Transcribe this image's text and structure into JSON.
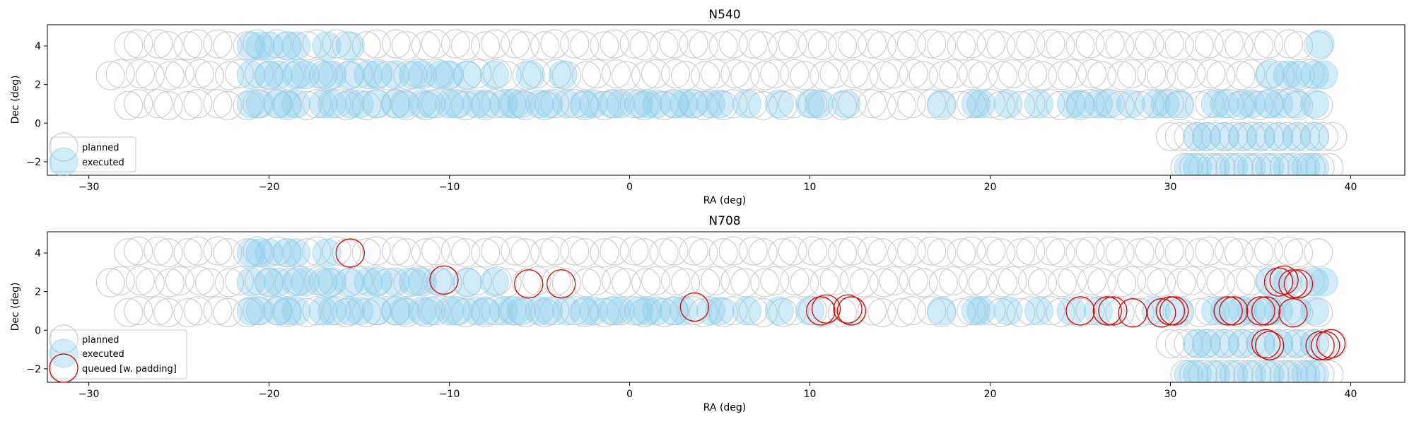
{
  "colors": {
    "planned": "#cccccc",
    "executed_fill": "#87ceeb",
    "queued": "#e00000",
    "axes": "#000000"
  },
  "chart_data": [
    {
      "type": "scatter",
      "title": "N540",
      "xlabel": "RA (deg)",
      "ylabel": "Dec (deg)",
      "xlim": [
        -32.3,
        43
      ],
      "ylim": [
        -2.7,
        5.1
      ],
      "xticks": [
        -30,
        -20,
        -10,
        0,
        10,
        20,
        30,
        40
      ],
      "yticks": [
        -2,
        0,
        2,
        4
      ],
      "grid": false,
      "legend_position": "lower-left",
      "legend": [
        "planned",
        "executed"
      ],
      "series": [
        {
          "name": "planned",
          "style": "open-gray",
          "points": []
        },
        {
          "name": "executed",
          "style": "filled-blue",
          "points": [
            [
              -21.0,
              4.0
            ],
            [
              -20.5,
              4.0
            ],
            [
              -20.0,
              4.0
            ],
            [
              -19.0,
              4.0
            ],
            [
              -18.5,
              4.0
            ],
            [
              -16.8,
              4.0
            ],
            [
              -15.5,
              4.0
            ],
            [
              -21.0,
              2.5
            ],
            [
              -20.0,
              2.5
            ],
            [
              -19.5,
              2.5
            ],
            [
              -18.5,
              2.5
            ],
            [
              -18.0,
              2.5
            ],
            [
              -17.0,
              2.5
            ],
            [
              -16.5,
              2.5
            ],
            [
              -15.5,
              2.5
            ],
            [
              -14.5,
              2.5
            ],
            [
              -14.0,
              2.5
            ],
            [
              -13.0,
              2.5
            ],
            [
              -12.0,
              2.5
            ],
            [
              -11.5,
              2.5
            ],
            [
              -10.5,
              2.5
            ],
            [
              -10.0,
              2.5
            ],
            [
              -9.0,
              2.5
            ],
            [
              -7.5,
              2.5
            ],
            [
              -5.5,
              2.5
            ],
            [
              -3.7,
              2.5
            ],
            [
              -21.0,
              1.0
            ],
            [
              -20.5,
              1.0
            ],
            [
              -19.5,
              1.0
            ],
            [
              -19.0,
              1.0
            ],
            [
              -18.5,
              1.0
            ],
            [
              -17.0,
              1.0
            ],
            [
              -16.5,
              1.0
            ],
            [
              -15.5,
              1.0
            ],
            [
              -15.0,
              1.0
            ],
            [
              -14.0,
              1.0
            ],
            [
              -13.0,
              1.0
            ],
            [
              -12.5,
              1.0
            ],
            [
              -11.5,
              1.0
            ],
            [
              -11.0,
              1.0
            ],
            [
              -10.0,
              1.0
            ],
            [
              -9.5,
              1.0
            ],
            [
              -8.5,
              1.0
            ],
            [
              -8.0,
              1.0
            ],
            [
              -7.0,
              1.0
            ],
            [
              -6.5,
              1.0
            ],
            [
              -6.0,
              1.0
            ],
            [
              -5.0,
              1.0
            ],
            [
              -4.5,
              1.0
            ],
            [
              -3.5,
              1.0
            ],
            [
              -2.5,
              1.0
            ],
            [
              -2.0,
              1.0
            ],
            [
              -1.0,
              1.0
            ],
            [
              -0.5,
              1.0
            ],
            [
              0.5,
              1.0
            ],
            [
              1.0,
              1.0
            ],
            [
              1.5,
              1.0
            ],
            [
              2.5,
              1.0
            ],
            [
              3.0,
              1.0
            ],
            [
              3.5,
              1.0
            ],
            [
              4.5,
              1.0
            ],
            [
              5.0,
              1.0
            ],
            [
              6.5,
              1.0
            ],
            [
              8.3,
              1.0
            ],
            [
              10.0,
              1.0
            ],
            [
              10.5,
              1.0
            ],
            [
              12.0,
              1.0
            ],
            [
              17.3,
              1.0
            ],
            [
              19.2,
              1.0
            ],
            [
              19.5,
              1.0
            ],
            [
              21.0,
              1.0
            ],
            [
              22.7,
              1.0
            ],
            [
              24.5,
              1.0
            ],
            [
              25.0,
              1.0
            ],
            [
              26.0,
              1.0
            ],
            [
              26.5,
              1.0
            ],
            [
              27.8,
              1.0
            ],
            [
              29.2,
              1.0
            ],
            [
              29.7,
              1.0
            ],
            [
              30.5,
              1.0
            ],
            [
              38.3,
              4.1
            ],
            [
              35.5,
              2.5
            ],
            [
              36.5,
              2.5
            ],
            [
              37.0,
              2.5
            ],
            [
              38.0,
              2.5
            ],
            [
              38.5,
              2.5
            ],
            [
              32.5,
              1.0
            ],
            [
              33.0,
              1.0
            ],
            [
              34.0,
              1.0
            ],
            [
              34.5,
              1.0
            ],
            [
              35.5,
              1.0
            ],
            [
              36.0,
              1.0
            ],
            [
              37.0,
              1.0
            ],
            [
              38.0,
              1.0
            ],
            [
              31.5,
              -0.7
            ],
            [
              32.0,
              -0.7
            ],
            [
              33.0,
              -0.7
            ],
            [
              34.0,
              -0.7
            ],
            [
              35.0,
              -0.7
            ],
            [
              36.0,
              -0.7
            ],
            [
              37.0,
              -0.7
            ],
            [
              38.0,
              -0.7
            ],
            [
              31.0,
              -2.3
            ],
            [
              31.5,
              -2.3
            ],
            [
              32.5,
              -2.3
            ],
            [
              33.5,
              -2.3
            ],
            [
              34.5,
              -2.3
            ],
            [
              35.5,
              -2.3
            ],
            [
              36.5,
              -2.3
            ],
            [
              37.5,
              -2.3
            ],
            [
              38.0,
              -2.3
            ]
          ]
        }
      ]
    },
    {
      "type": "scatter",
      "title": "N708",
      "xlabel": "RA (deg)",
      "ylabel": "Dec (deg)",
      "xlim": [
        -32.3,
        43
      ],
      "ylim": [
        -2.7,
        5.1
      ],
      "xticks": [
        -30,
        -20,
        -10,
        0,
        10,
        20,
        30,
        40
      ],
      "yticks": [
        -2,
        0,
        2,
        4
      ],
      "grid": false,
      "legend_position": "lower-left",
      "legend": [
        "planned",
        "executed",
        "queued [w. padding]"
      ],
      "series": [
        {
          "name": "planned",
          "style": "open-gray",
          "points": []
        },
        {
          "name": "executed",
          "style": "filled-blue",
          "points": [
            [
              -21.0,
              4.0
            ],
            [
              -20.5,
              4.0
            ],
            [
              -20.0,
              4.0
            ],
            [
              -19.0,
              4.0
            ],
            [
              -18.5,
              4.0
            ],
            [
              -16.8,
              4.0
            ],
            [
              -21.0,
              2.5
            ],
            [
              -20.0,
              2.5
            ],
            [
              -19.5,
              2.5
            ],
            [
              -18.5,
              2.5
            ],
            [
              -18.0,
              2.5
            ],
            [
              -17.0,
              2.5
            ],
            [
              -16.5,
              2.5
            ],
            [
              -15.5,
              2.5
            ],
            [
              -14.5,
              2.5
            ],
            [
              -14.0,
              2.5
            ],
            [
              -13.0,
              2.5
            ],
            [
              -12.0,
              2.5
            ],
            [
              -11.5,
              2.5
            ],
            [
              -10.5,
              2.5
            ],
            [
              -9.0,
              2.5
            ],
            [
              -7.5,
              2.5
            ],
            [
              -21.0,
              1.0
            ],
            [
              -20.5,
              1.0
            ],
            [
              -19.5,
              1.0
            ],
            [
              -19.0,
              1.0
            ],
            [
              -18.5,
              1.0
            ],
            [
              -17.0,
              1.0
            ],
            [
              -16.5,
              1.0
            ],
            [
              -15.5,
              1.0
            ],
            [
              -15.0,
              1.0
            ],
            [
              -14.0,
              1.0
            ],
            [
              -13.0,
              1.0
            ],
            [
              -12.5,
              1.0
            ],
            [
              -11.5,
              1.0
            ],
            [
              -11.0,
              1.0
            ],
            [
              -10.0,
              1.0
            ],
            [
              -9.5,
              1.0
            ],
            [
              -8.5,
              1.0
            ],
            [
              -8.0,
              1.0
            ],
            [
              -7.0,
              1.0
            ],
            [
              -6.5,
              1.0
            ],
            [
              -6.0,
              1.0
            ],
            [
              -5.0,
              1.0
            ],
            [
              -4.5,
              1.0
            ],
            [
              -3.5,
              1.0
            ],
            [
              -2.5,
              1.0
            ],
            [
              -2.0,
              1.0
            ],
            [
              -1.0,
              1.0
            ],
            [
              -0.5,
              1.0
            ],
            [
              0.5,
              1.0
            ],
            [
              1.0,
              1.0
            ],
            [
              1.5,
              1.0
            ],
            [
              2.5,
              1.0
            ],
            [
              3.0,
              1.0
            ],
            [
              4.5,
              1.0
            ],
            [
              5.0,
              1.0
            ],
            [
              6.5,
              1.0
            ],
            [
              8.3,
              1.0
            ],
            [
              10.0,
              1.0
            ],
            [
              17.3,
              1.0
            ],
            [
              19.2,
              1.0
            ],
            [
              19.5,
              1.0
            ],
            [
              21.0,
              1.0
            ],
            [
              22.7,
              1.0
            ],
            [
              24.5,
              1.0
            ],
            [
              26.0,
              1.0
            ],
            [
              29.2,
              1.0
            ],
            [
              30.5,
              1.0
            ],
            [
              35.5,
              2.5
            ],
            [
              36.5,
              2.5
            ],
            [
              38.0,
              2.5
            ],
            [
              38.5,
              2.5
            ],
            [
              32.5,
              1.0
            ],
            [
              33.0,
              1.0
            ],
            [
              34.0,
              1.0
            ],
            [
              34.5,
              1.0
            ],
            [
              35.5,
              1.0
            ],
            [
              36.0,
              1.0
            ],
            [
              37.0,
              1.0
            ],
            [
              38.0,
              1.0
            ],
            [
              31.5,
              -0.7
            ],
            [
              32.0,
              -0.7
            ],
            [
              33.0,
              -0.7
            ],
            [
              34.0,
              -0.7
            ],
            [
              35.0,
              -0.7
            ],
            [
              36.0,
              -0.7
            ],
            [
              37.0,
              -0.7
            ],
            [
              38.0,
              -0.7
            ],
            [
              31.0,
              -2.3
            ],
            [
              31.5,
              -2.3
            ],
            [
              32.5,
              -2.3
            ],
            [
              33.5,
              -2.3
            ],
            [
              34.5,
              -2.3
            ],
            [
              35.5,
              -2.3
            ],
            [
              36.5,
              -2.3
            ],
            [
              37.5,
              -2.3
            ],
            [
              38.0,
              -2.3
            ]
          ]
        },
        {
          "name": "queued [w. padding]",
          "style": "open-red",
          "points": [
            [
              -15.5,
              4.0
            ],
            [
              -10.3,
              2.6
            ],
            [
              -5.6,
              2.4
            ],
            [
              -3.8,
              2.4
            ],
            [
              3.6,
              1.2
            ],
            [
              10.6,
              1.0
            ],
            [
              10.9,
              1.1
            ],
            [
              12.1,
              1.1
            ],
            [
              12.3,
              1.0
            ],
            [
              25.0,
              1.0
            ],
            [
              26.5,
              1.0
            ],
            [
              26.8,
              1.0
            ],
            [
              27.9,
              0.9
            ],
            [
              29.5,
              0.9
            ],
            [
              30.0,
              1.0
            ],
            [
              30.2,
              1.0
            ],
            [
              33.2,
              1.0
            ],
            [
              33.5,
              1.0
            ],
            [
              35.0,
              1.0
            ],
            [
              35.3,
              1.0
            ],
            [
              36.8,
              0.9
            ],
            [
              36.0,
              2.5
            ],
            [
              36.3,
              2.6
            ],
            [
              36.8,
              2.4
            ],
            [
              37.1,
              2.4
            ],
            [
              35.3,
              -0.7
            ],
            [
              35.5,
              -0.8
            ],
            [
              38.3,
              -0.8
            ],
            [
              38.6,
              -0.8
            ],
            [
              38.9,
              -0.7
            ]
          ]
        }
      ]
    }
  ]
}
